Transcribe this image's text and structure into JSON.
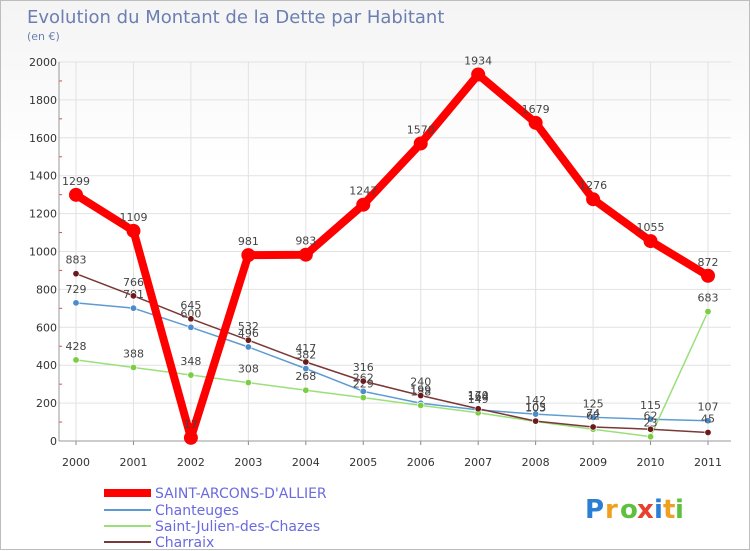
{
  "chart_data": {
    "type": "line",
    "title": "Evolution du Montant de la Dette par Habitant",
    "subtitle": "(en €)",
    "x": [
      "2000",
      "2001",
      "2002",
      "2003",
      "2004",
      "2005",
      "2006",
      "2007",
      "2008",
      "2009",
      "2010",
      "2011"
    ],
    "ylim": [
      0,
      2000
    ],
    "yticks": [
      0,
      200,
      400,
      600,
      800,
      1000,
      1200,
      1400,
      1600,
      1800,
      2000
    ],
    "grid": true,
    "legend_position": "bottom-left",
    "series": [
      {
        "name": "SAINT-ARCONS-D'ALLIER",
        "color": "#ff0000",
        "marker_color": "#ff0000",
        "values": [
          1299,
          1109,
          17,
          981,
          983,
          1247,
          1570,
          1934,
          1679,
          1276,
          1055,
          872
        ],
        "labels": [
          "1299",
          "1109",
          "17",
          "981",
          "983",
          "1247",
          "1570",
          "1934",
          "1679",
          "1276",
          "1055",
          "872"
        ],
        "emphasis": "thick"
      },
      {
        "name": "Chanteuges",
        "color": "#5c9bd4",
        "marker_color": "#4a8ccc",
        "values": [
          729,
          701,
          600,
          496,
          382,
          262,
          199,
          164,
          142,
          125,
          115,
          107
        ],
        "labels": [
          "729",
          "701",
          "600",
          "496",
          "382",
          "262",
          "199",
          "164",
          "142",
          "125",
          "115",
          "107"
        ],
        "emphasis": "thin"
      },
      {
        "name": "Saint-Julien-des-Chazes",
        "color": "#99e07a",
        "marker_color": "#7ccc44",
        "values": [
          428,
          388,
          348,
          308,
          268,
          229,
          188,
          149,
          103,
          62,
          23,
          683
        ],
        "labels": [
          "428",
          "388",
          "348",
          "308",
          "268",
          "229",
          "188",
          "149",
          "103",
          "62",
          "23",
          "683"
        ],
        "emphasis": "thin"
      },
      {
        "name": "Charraix",
        "color": "#7a3838",
        "marker_color": "#6b1a1a",
        "values": [
          883,
          766,
          645,
          532,
          417,
          316,
          240,
          170,
          105,
          74,
          62,
          45
        ],
        "labels": [
          "883",
          "766",
          "645",
          "532",
          "417",
          "316",
          "240",
          "170",
          "105",
          "74",
          "62",
          "45"
        ],
        "emphasis": "thin"
      }
    ]
  },
  "logo": {
    "text": "Proxiti"
  }
}
